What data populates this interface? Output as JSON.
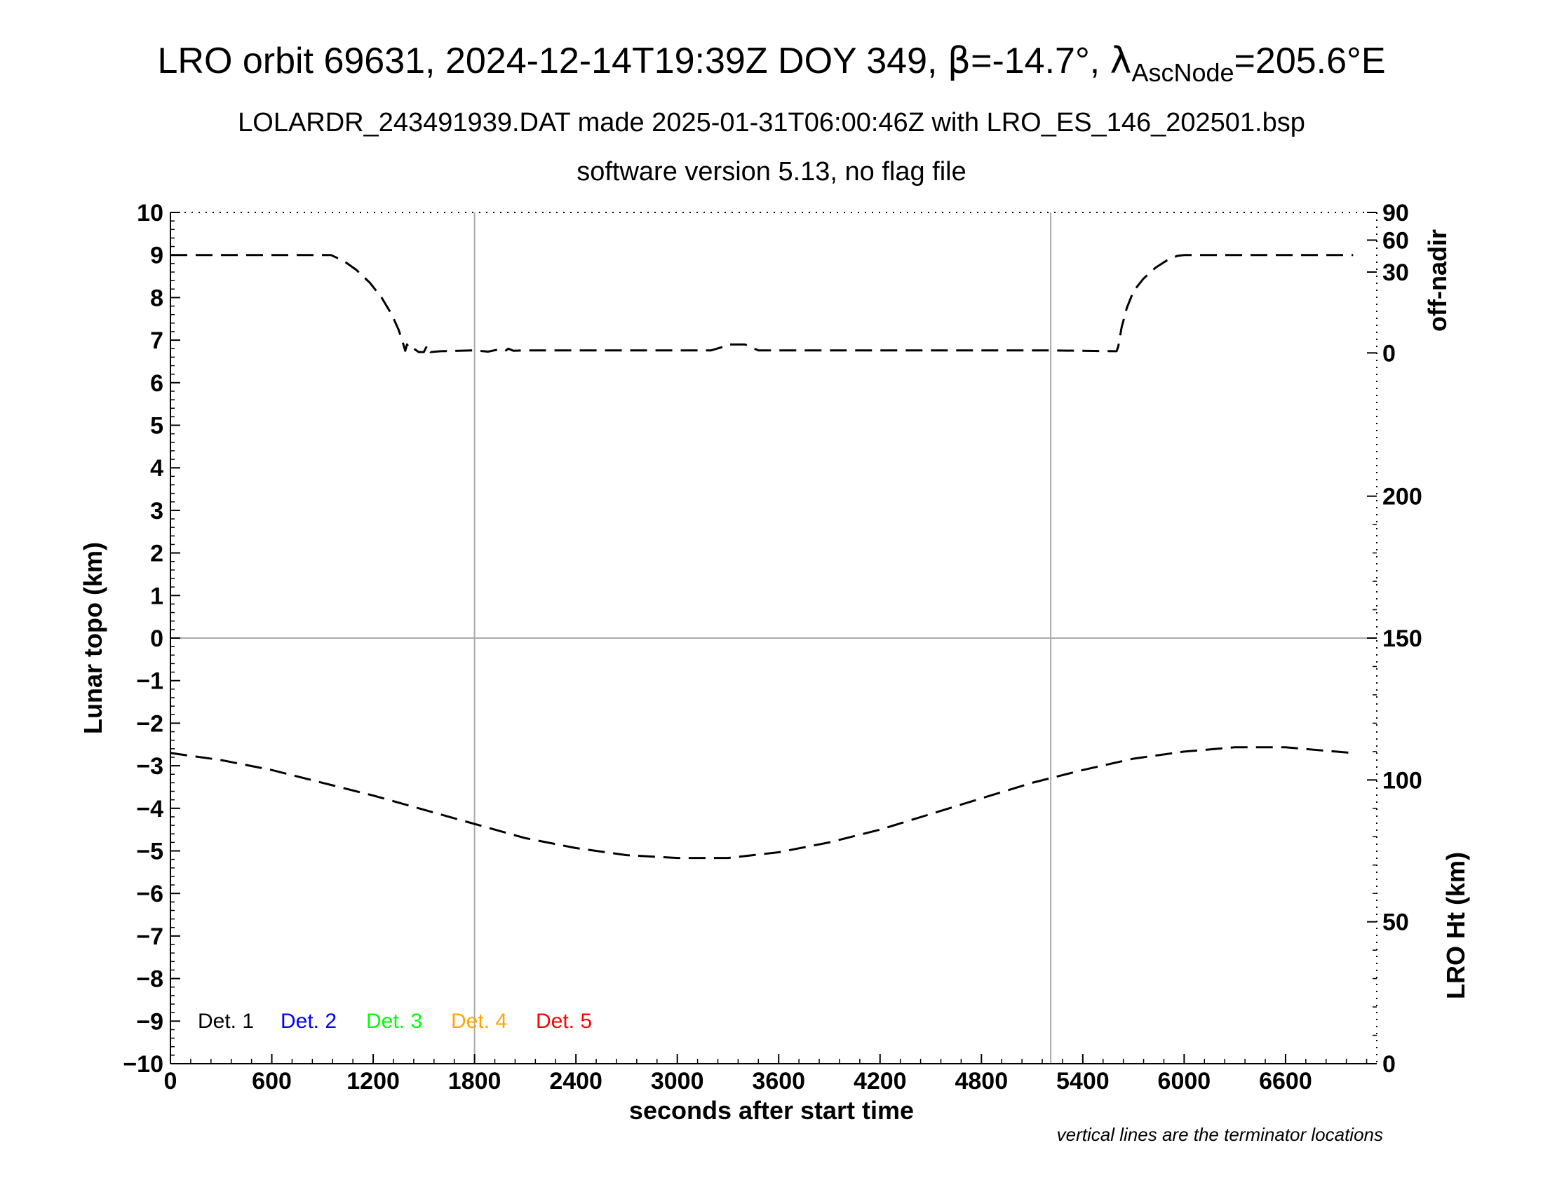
{
  "header": {
    "title_prefix": "LRO orbit 69631, 2024-12-14T19:39Z DOY 349, ",
    "beta_symbol": "β",
    "beta_value": "=-14.7°, ",
    "lambda_symbol": "λ",
    "lambda_sub": "AscNode",
    "lambda_value": "=205.6°E",
    "subtitle": "LOLARDR_243491939.DAT made 2025-01-31T06:00:46Z with LRO_ES_146_202501.bsp",
    "subtitle2": "software version 5.13, no flag file"
  },
  "footnote": "vertical lines are the terminator locations",
  "legend": [
    {
      "label": "Det. 1",
      "color": "#000000"
    },
    {
      "label": "Det. 2",
      "color": "#0000ff"
    },
    {
      "label": "Det. 3",
      "color": "#00ff00"
    },
    {
      "label": "Det. 4",
      "color": "#ffa500"
    },
    {
      "label": "Det. 5",
      "color": "#ff0000"
    }
  ],
  "chart_data": {
    "type": "line",
    "xlabel": "seconds after start time",
    "ylabel": "Lunar topo (km)",
    "xlim": [
      0,
      7140
    ],
    "ylim": [
      -10,
      10
    ],
    "x_ticks": [
      0,
      600,
      1200,
      1800,
      2400,
      3000,
      3600,
      4200,
      4800,
      5400,
      6000,
      6600
    ],
    "y_ticks": [
      10,
      9,
      8,
      7,
      6,
      5,
      4,
      3,
      2,
      1,
      0,
      -1,
      -2,
      -3,
      -4,
      -5,
      -6,
      -7,
      -8,
      -9,
      -10
    ],
    "y_tick_labels": [
      "10",
      "9",
      "8",
      "7",
      "6",
      "5",
      "4",
      "3",
      "2",
      "1",
      "0",
      "−1",
      "−2",
      "−3",
      "−4",
      "−5",
      "−6",
      "−7",
      "−8",
      "−9",
      "−10"
    ],
    "terminators": [
      1800,
      5210
    ],
    "right_axis_off_nadir": {
      "label": "off-nadir",
      "ticks": [
        {
          "value": 0,
          "y_topo": 6.7
        },
        {
          "value": 30,
          "y_topo": 8.6
        },
        {
          "value": 60,
          "y_topo": 9.35
        },
        {
          "value": 90,
          "y_topo": 10
        }
      ],
      "tick_labels": [
        "0",
        "30",
        "60",
        "90"
      ]
    },
    "right_axis_lro_ht": {
      "label": "LRO Ht (km)",
      "range": [
        0,
        300
      ],
      "ticks": [
        0,
        50,
        100,
        150,
        200
      ],
      "tick_labels": [
        "0",
        "50",
        "100",
        "150",
        "200"
      ]
    },
    "series": [
      {
        "role": "off-nadir",
        "style": "dashed",
        "color": "#000000",
        "x": [
          0,
          950,
          1030,
          1100,
          1180,
          1250,
          1310,
          1350,
          1375,
          1390,
          1400,
          1420,
          1440,
          1470,
          1500,
          1520,
          1540,
          1600,
          1800,
          1880,
          1940,
          1980,
          2000,
          2030,
          2100,
          3000,
          3200,
          3260,
          3300,
          3400,
          3480,
          3600,
          4200,
          5200,
          5600,
          5610,
          5630,
          5660,
          5700,
          5760,
          5830,
          5900,
          5960,
          6000,
          6600,
          7000
        ],
        "y": [
          9.0,
          9.0,
          8.85,
          8.65,
          8.35,
          8.0,
          7.6,
          7.25,
          6.95,
          6.75,
          6.9,
          6.78,
          6.8,
          6.72,
          6.72,
          6.88,
          6.72,
          6.74,
          6.76,
          6.73,
          6.78,
          6.74,
          6.8,
          6.75,
          6.76,
          6.76,
          6.76,
          6.83,
          6.9,
          6.9,
          6.76,
          6.76,
          6.76,
          6.76,
          6.74,
          6.85,
          7.3,
          7.75,
          8.15,
          8.45,
          8.7,
          8.88,
          8.98,
          9.0,
          9.0,
          9.0
        ]
      },
      {
        "role": "LRO Ht",
        "style": "dashed",
        "color": "#000000",
        "x": [
          0,
          300,
          600,
          900,
          1200,
          1500,
          1800,
          2100,
          2400,
          2700,
          3000,
          3300,
          3600,
          3900,
          4200,
          4500,
          4800,
          5100,
          5400,
          5700,
          6000,
          6300,
          6600,
          6900,
          7000
        ],
        "y_ht": [
          109.5,
          107.0,
          103.5,
          99.0,
          94.5,
          89.5,
          84.5,
          79.5,
          76.0,
          73.5,
          72.5,
          72.5,
          74.5,
          78.0,
          82.5,
          88.0,
          93.5,
          99.0,
          103.5,
          107.5,
          110.0,
          111.5,
          111.5,
          110.0,
          109.5
        ]
      }
    ]
  }
}
